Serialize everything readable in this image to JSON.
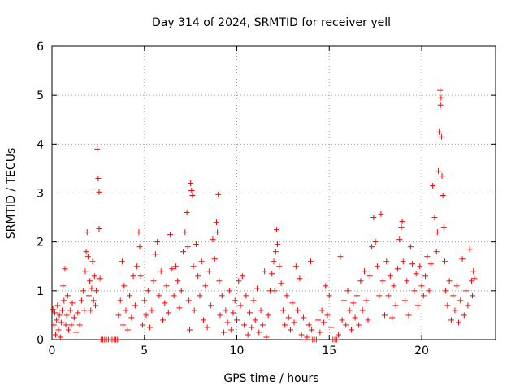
{
  "chart_data": {
    "type": "scatter",
    "title": "Day 314 of 2024, SRMTID for receiver yell",
    "xlabel": "GPS time / hours",
    "ylabel": "SRMTID / TECUs",
    "xlim": [
      0,
      24
    ],
    "ylim": [
      0,
      6
    ],
    "x_ticks": [
      0,
      5,
      10,
      15,
      20
    ],
    "y_ticks": [
      0,
      1,
      2,
      3,
      4,
      5,
      6
    ],
    "x_tick_labels": [
      "0",
      "5",
      "10",
      "15",
      "20"
    ],
    "y_tick_labels": [
      "0",
      "1",
      "2",
      "3",
      "4",
      "5",
      "6"
    ],
    "grid": true,
    "legend": "none",
    "marker": "+",
    "colors": {
      "points": "#ff0000",
      "grid": "#a0a0a0",
      "axes": "#000000"
    },
    "series": [
      {
        "name": "SRMTID",
        "points": [
          [
            0.05,
            0.62
          ],
          [
            0.1,
            0.3
          ],
          [
            0.15,
            0.55
          ],
          [
            0.2,
            0.1
          ],
          [
            0.25,
            0.4
          ],
          [
            0.3,
            0.7
          ],
          [
            0.35,
            0.2
          ],
          [
            0.4,
            0.5
          ],
          [
            0.45,
            0.05
          ],
          [
            0.5,
            0.35
          ],
          [
            0.55,
            0.6
          ],
          [
            0.6,
            1.1
          ],
          [
            0.65,
            0.8
          ],
          [
            0.7,
            1.45
          ],
          [
            0.75,
            0.3
          ],
          [
            0.8,
            0.5
          ],
          [
            0.85,
            0.9
          ],
          [
            0.9,
            0.2
          ],
          [
            1.0,
            0.6
          ],
          [
            1.05,
            0.3
          ],
          [
            1.1,
            0.75
          ],
          [
            1.2,
            0.45
          ],
          [
            1.3,
            0.15
          ],
          [
            1.4,
            0.55
          ],
          [
            1.5,
            0.3
          ],
          [
            1.6,
            0.8
          ],
          [
            1.7,
            1.0
          ],
          [
            1.75,
            0.6
          ],
          [
            1.8,
            1.4
          ],
          [
            1.85,
            1.8
          ],
          [
            1.9,
            2.2
          ],
          [
            1.95,
            1.7
          ],
          [
            2.0,
            0.9
          ],
          [
            2.05,
            1.2
          ],
          [
            2.1,
            0.6
          ],
          [
            2.15,
            1.05
          ],
          [
            2.2,
            1.6
          ],
          [
            2.25,
            0.8
          ],
          [
            2.3,
            1.3
          ],
          [
            2.35,
            0.7
          ],
          [
            2.4,
            1.0
          ],
          [
            2.45,
            3.9
          ],
          [
            2.5,
            3.3
          ],
          [
            2.55,
            3.02
          ],
          [
            2.6,
            1.25
          ],
          [
            2.55,
            2.27
          ],
          [
            2.65,
            0.0
          ],
          [
            2.75,
            0.0
          ],
          [
            2.85,
            0.0
          ],
          [
            2.95,
            0.0
          ],
          [
            3.05,
            0.0
          ],
          [
            3.15,
            0.0
          ],
          [
            3.25,
            0.0
          ],
          [
            3.35,
            0.0
          ],
          [
            3.45,
            0.0
          ],
          [
            3.55,
            0.0
          ],
          [
            3.6,
            0.5
          ],
          [
            3.7,
            0.8
          ],
          [
            3.8,
            1.6
          ],
          [
            3.85,
            0.3
          ],
          [
            3.9,
            1.1
          ],
          [
            4.0,
            0.6
          ],
          [
            4.1,
            0.2
          ],
          [
            4.2,
            0.9
          ],
          [
            4.3,
            0.45
          ],
          [
            4.4,
            1.3
          ],
          [
            4.5,
            0.7
          ],
          [
            4.6,
            1.5
          ],
          [
            4.7,
            2.2
          ],
          [
            4.75,
            1.9
          ],
          [
            4.8,
            1.3
          ],
          [
            4.9,
            0.3
          ],
          [
            5.0,
            0.8
          ],
          [
            5.1,
            0.5
          ],
          [
            5.2,
            1.0
          ],
          [
            5.3,
            0.25
          ],
          [
            5.4,
            0.6
          ],
          [
            5.5,
            1.2
          ],
          [
            5.6,
            1.75
          ],
          [
            5.7,
            2.0
          ],
          [
            5.8,
            0.9
          ],
          [
            5.9,
            1.4
          ],
          [
            6.0,
            0.4
          ],
          [
            6.1,
            0.75
          ],
          [
            6.2,
            1.1
          ],
          [
            6.3,
            0.55
          ],
          [
            6.4,
            2.15
          ],
          [
            6.5,
            1.45
          ],
          [
            6.6,
            0.9
          ],
          [
            6.7,
            1.5
          ],
          [
            6.8,
            1.2
          ],
          [
            6.9,
            0.65
          ],
          [
            7.0,
            1.0
          ],
          [
            7.1,
            1.8
          ],
          [
            7.2,
            2.2
          ],
          [
            7.3,
            2.6
          ],
          [
            7.35,
            1.9
          ],
          [
            7.4,
            0.8
          ],
          [
            7.45,
            0.2
          ],
          [
            7.5,
            3.2
          ],
          [
            7.55,
            3.05
          ],
          [
            7.6,
            2.95
          ],
          [
            7.65,
            1.5
          ],
          [
            7.7,
            0.6
          ],
          [
            7.8,
            1.95
          ],
          [
            7.9,
            1.3
          ],
          [
            8.0,
            0.9
          ],
          [
            8.1,
            1.6
          ],
          [
            8.2,
            0.4
          ],
          [
            8.3,
            1.1
          ],
          [
            8.4,
            0.25
          ],
          [
            8.5,
            1.4
          ],
          [
            8.6,
            0.7
          ],
          [
            8.7,
            2.05
          ],
          [
            8.8,
            1.65
          ],
          [
            8.9,
            2.4
          ],
          [
            8.95,
            2.2
          ],
          [
            9.0,
            2.97
          ],
          [
            9.05,
            1.2
          ],
          [
            9.1,
            0.5
          ],
          [
            9.2,
            0.9
          ],
          [
            9.3,
            0.15
          ],
          [
            9.4,
            0.6
          ],
          [
            9.5,
            0.35
          ],
          [
            9.6,
            1.0
          ],
          [
            9.7,
            0.2
          ],
          [
            9.8,
            0.55
          ],
          [
            9.9,
            0.8
          ],
          [
            10.0,
            0.4
          ],
          [
            10.1,
            1.2
          ],
          [
            10.2,
            0.7
          ],
          [
            10.3,
            1.3
          ],
          [
            10.4,
            0.3
          ],
          [
            10.5,
            0.9
          ],
          [
            10.6,
            0.1
          ],
          [
            10.7,
            0.55
          ],
          [
            10.8,
            0.25
          ],
          [
            10.9,
            0.8
          ],
          [
            11.0,
            0.4
          ],
          [
            11.1,
            1.05
          ],
          [
            11.2,
            0.15
          ],
          [
            11.3,
            0.6
          ],
          [
            11.4,
            0.3
          ],
          [
            11.5,
            1.4
          ],
          [
            11.6,
            0.05
          ],
          [
            11.7,
            0.5
          ],
          [
            11.8,
            1.0
          ],
          [
            11.9,
            1.35
          ],
          [
            12.0,
            1.6
          ],
          [
            12.05,
            1.0
          ],
          [
            12.1,
            1.8
          ],
          [
            12.15,
            2.25
          ],
          [
            12.2,
            1.95
          ],
          [
            12.3,
            1.5
          ],
          [
            12.4,
            1.15
          ],
          [
            12.5,
            0.6
          ],
          [
            12.6,
            0.3
          ],
          [
            12.7,
            0.9
          ],
          [
            12.8,
            0.45
          ],
          [
            12.9,
            0.2
          ],
          [
            13.0,
            0.75
          ],
          [
            13.1,
            0.35
          ],
          [
            13.2,
            1.5
          ],
          [
            13.3,
            0.6
          ],
          [
            13.4,
            1.25
          ],
          [
            13.5,
            0.1
          ],
          [
            13.6,
            0.45
          ],
          [
            13.7,
            0.0
          ],
          [
            13.8,
            0.05
          ],
          [
            13.9,
            0.3
          ],
          [
            14.0,
            1.6
          ],
          [
            14.05,
            0.2
          ],
          [
            14.1,
            0.0
          ],
          [
            14.2,
            0.0
          ],
          [
            14.3,
            0.0
          ],
          [
            14.4,
            0.4
          ],
          [
            14.5,
            0.15
          ],
          [
            14.6,
            0.6
          ],
          [
            14.7,
            0.35
          ],
          [
            14.8,
            1.1
          ],
          [
            14.9,
            0.5
          ],
          [
            15.0,
            0.9
          ],
          [
            15.1,
            0.25
          ],
          [
            15.2,
            0.0
          ],
          [
            15.3,
            0.0
          ],
          [
            15.4,
            0.0
          ],
          [
            15.5,
            0.1
          ],
          [
            15.6,
            1.7
          ],
          [
            15.7,
            0.4
          ],
          [
            15.8,
            0.8
          ],
          [
            15.9,
            0.3
          ],
          [
            16.0,
            1.0
          ],
          [
            16.1,
            0.6
          ],
          [
            16.2,
            0.2
          ],
          [
            16.3,
            0.75
          ],
          [
            16.4,
            0.45
          ],
          [
            16.5,
            0.9
          ],
          [
            16.6,
            0.3
          ],
          [
            16.7,
            1.2
          ],
          [
            16.8,
            0.6
          ],
          [
            16.9,
            1.4
          ],
          [
            17.0,
            0.8
          ],
          [
            17.1,
            0.4
          ],
          [
            17.2,
            1.3
          ],
          [
            17.3,
            1.9
          ],
          [
            17.4,
            2.5
          ],
          [
            17.5,
            2.0
          ],
          [
            17.6,
            1.5
          ],
          [
            17.7,
            0.9
          ],
          [
            17.8,
            2.57
          ],
          [
            17.9,
            1.2
          ],
          [
            18.0,
            0.5
          ],
          [
            18.1,
            1.6
          ],
          [
            18.2,
            0.9
          ],
          [
            18.3,
            1.3
          ],
          [
            18.4,
            0.45
          ],
          [
            18.5,
            1.1
          ],
          [
            18.6,
            0.7
          ],
          [
            18.7,
            1.45
          ],
          [
            18.8,
            2.05
          ],
          [
            18.9,
            2.3
          ],
          [
            18.95,
            2.42
          ],
          [
            19.0,
            1.6
          ],
          [
            19.1,
            0.8
          ],
          [
            19.2,
            1.2
          ],
          [
            19.3,
            0.5
          ],
          [
            19.4,
            1.9
          ],
          [
            19.5,
            1.55
          ],
          [
            19.6,
            1.0
          ],
          [
            19.7,
            1.35
          ],
          [
            19.8,
            0.7
          ],
          [
            19.9,
            1.5
          ],
          [
            20.0,
            1.1
          ],
          [
            20.1,
            0.9
          ],
          [
            20.2,
            1.3
          ],
          [
            20.3,
            1.7
          ],
          [
            20.4,
            1.0
          ],
          [
            20.5,
            1.55
          ],
          [
            20.6,
            3.15
          ],
          [
            20.7,
            2.5
          ],
          [
            20.8,
            1.8
          ],
          [
            20.85,
            2.2
          ],
          [
            20.9,
            3.45
          ],
          [
            20.95,
            4.25
          ],
          [
            21.0,
            5.1
          ],
          [
            21.02,
            4.8
          ],
          [
            21.05,
            4.95
          ],
          [
            21.08,
            4.15
          ],
          [
            21.1,
            3.35
          ],
          [
            21.15,
            2.95
          ],
          [
            21.2,
            2.3
          ],
          [
            21.25,
            1.6
          ],
          [
            21.3,
            1.0
          ],
          [
            21.4,
            0.7
          ],
          [
            21.5,
            1.2
          ],
          [
            21.6,
            0.4
          ],
          [
            21.7,
            0.9
          ],
          [
            21.8,
            0.6
          ],
          [
            21.9,
            1.1
          ],
          [
            22.0,
            0.35
          ],
          [
            22.1,
            0.8
          ],
          [
            22.2,
            1.65
          ],
          [
            22.3,
            0.5
          ],
          [
            22.4,
            1.0
          ],
          [
            22.5,
            0.7
          ],
          [
            22.6,
            1.85
          ],
          [
            22.7,
            1.2
          ],
          [
            22.75,
            0.9
          ],
          [
            22.8,
            1.4
          ],
          [
            22.85,
            1.25
          ]
        ]
      }
    ]
  }
}
